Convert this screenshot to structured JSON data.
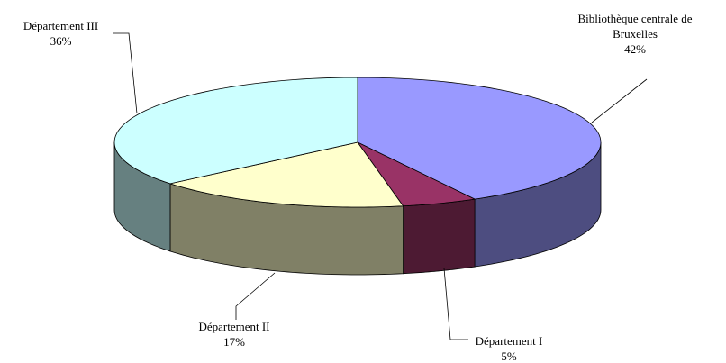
{
  "chart_data": {
    "type": "pie",
    "categories": [
      "Bibliothèque centrale de Bruxelles",
      "Département I",
      "Département II",
      "Département III"
    ],
    "values": [
      42,
      5,
      17,
      36
    ],
    "value_labels": [
      "42%",
      "5%",
      "17%",
      "36%"
    ],
    "colors": [
      "#9999ff",
      "#993366",
      "#ffffcc",
      "#ccffff"
    ]
  }
}
